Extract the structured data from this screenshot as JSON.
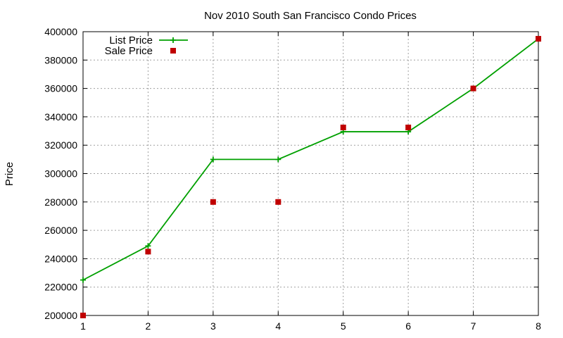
{
  "chart_data": {
    "type": "line",
    "title": "Nov 2010 South San Francisco Condo Prices",
    "xlabel": "",
    "ylabel": "Price",
    "xlim": [
      1,
      8
    ],
    "ylim": [
      200000,
      400000
    ],
    "x_ticks": [
      1,
      2,
      3,
      4,
      5,
      6,
      7,
      8
    ],
    "y_ticks": [
      200000,
      220000,
      240000,
      260000,
      280000,
      300000,
      320000,
      340000,
      360000,
      380000,
      400000
    ],
    "grid": true,
    "legend_position": "top-left",
    "series": [
      {
        "name": "List Price",
        "style": "line-with-plus-markers",
        "color": "#00a000",
        "x": [
          1,
          2,
          3,
          4,
          5,
          6,
          7,
          8
        ],
        "y": [
          225000,
          249000,
          310000,
          310000,
          329500,
          329500,
          360000,
          395000
        ]
      },
      {
        "name": "Sale Price",
        "style": "square-markers",
        "color": "#c00000",
        "x": [
          1,
          2,
          3,
          4,
          5,
          6,
          7,
          8
        ],
        "y": [
          200000,
          245000,
          280000,
          280000,
          332500,
          332500,
          360000,
          395000
        ]
      }
    ]
  }
}
